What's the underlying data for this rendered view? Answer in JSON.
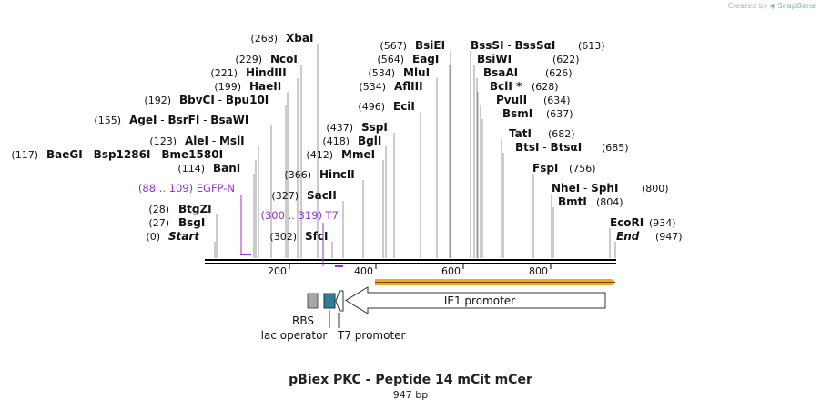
{
  "title": "pBiex PKC - Peptide 14 mCit mCer",
  "length_label": "947 bp",
  "credit": {
    "prefix": "Created by",
    "brand": "SnapGene"
  },
  "ruler": {
    "ticks": [
      "200",
      "400",
      "600",
      "800"
    ]
  },
  "sites": [
    {
      "pos": "(0)",
      "names": [
        "Start"
      ],
      "italic": true
    },
    {
      "pos": "(27)",
      "names": [
        "BsgI"
      ]
    },
    {
      "pos": "(28)",
      "names": [
        "BtgZI"
      ]
    },
    {
      "pos": "(114)",
      "names": [
        "BanI"
      ]
    },
    {
      "pos": "(117)",
      "names": [
        "BaeGI",
        "Bsp1286I",
        "Bme1580I"
      ]
    },
    {
      "pos": "(123)",
      "names": [
        "AleI",
        "MslI"
      ]
    },
    {
      "pos": "(155)",
      "names": [
        "AgeI",
        "BsrFI",
        "BsaWI"
      ]
    },
    {
      "pos": "(192)",
      "names": [
        "BbvCI",
        "Bpu10I"
      ]
    },
    {
      "pos": "(199)",
      "names": [
        "HaeII"
      ]
    },
    {
      "pos": "(221)",
      "names": [
        "HindIII"
      ]
    },
    {
      "pos": "(229)",
      "names": [
        "NcoI"
      ]
    },
    {
      "pos": "(268)",
      "names": [
        "XbaI"
      ]
    },
    {
      "pos": "(302)",
      "names": [
        "SfcI"
      ]
    },
    {
      "pos": "(327)",
      "names": [
        "SacII"
      ]
    },
    {
      "pos": "(366)",
      "names": [
        "HincII"
      ]
    },
    {
      "pos": "(412)",
      "names": [
        "MmeI"
      ]
    },
    {
      "pos": "(418)",
      "names": [
        "BglI"
      ]
    },
    {
      "pos": "(437)",
      "names": [
        "SspI"
      ]
    },
    {
      "pos": "(496)",
      "names": [
        "EciI"
      ]
    },
    {
      "pos": "(534)",
      "names": [
        "AflIII"
      ]
    },
    {
      "pos": "(534)",
      "names": [
        "MluI"
      ]
    },
    {
      "pos": "(564)",
      "names": [
        "EagI"
      ]
    },
    {
      "pos": "(567)",
      "names": [
        "BsiEI"
      ]
    },
    {
      "pos": "(613)",
      "names": [
        "BssSI",
        "BssSαI"
      ]
    },
    {
      "pos": "(622)",
      "names": [
        "BsiWI"
      ]
    },
    {
      "pos": "(626)",
      "names": [
        "BsaAI"
      ]
    },
    {
      "pos": "(628)",
      "names": [
        "BclI *"
      ]
    },
    {
      "pos": "(634)",
      "names": [
        "PvuII"
      ]
    },
    {
      "pos": "(637)",
      "names": [
        "BsmI"
      ]
    },
    {
      "pos": "(682)",
      "names": [
        "TatI"
      ]
    },
    {
      "pos": "(685)",
      "names": [
        "BtsI",
        "BtsαI"
      ]
    },
    {
      "pos": "(756)",
      "names": [
        "FspI"
      ]
    },
    {
      "pos": "(800)",
      "names": [
        "NheI",
        "SphI"
      ]
    },
    {
      "pos": "(804)",
      "names": [
        "BmtI"
      ]
    },
    {
      "pos": "(934)",
      "names": [
        "EcoRI"
      ]
    },
    {
      "pos": "(947)",
      "names": [
        "End"
      ],
      "italic": true
    }
  ],
  "primers": [
    {
      "range": "(88 .. 109)",
      "name": "EGFP-N"
    },
    {
      "range": "(300 .. 319)",
      "name": "T7"
    }
  ],
  "features": [
    {
      "name": "RBS"
    },
    {
      "name": "lac operator"
    },
    {
      "name": "T7 promoter"
    },
    {
      "name": "IE1 promoter"
    }
  ],
  "colors": {
    "primer": "#9a30d0",
    "orf": "#f4a521",
    "rbs": "#a8a8a8",
    "lac": "#2d7e96",
    "line": "#999999",
    "text": "#111111"
  }
}
